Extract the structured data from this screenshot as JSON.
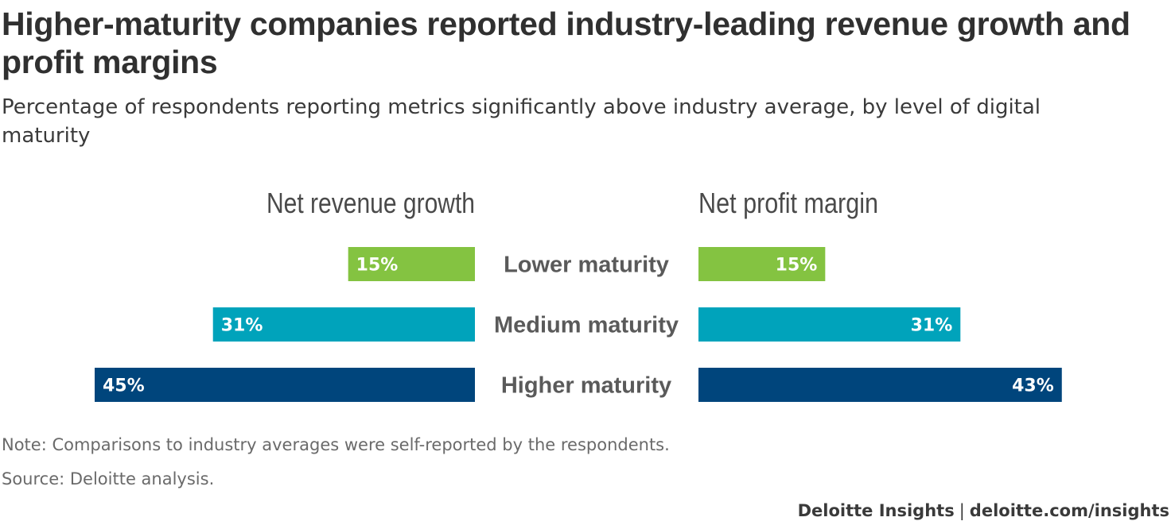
{
  "title": "Higher-maturity companies reported industry-leading revenue growth and profit margins",
  "subtitle": "Percentage of respondents reporting metrics significantly above industry average, by level of digital maturity",
  "note": "Note: Comparisons to industry averages were self-reported by the respondents.",
  "source": "Source: Deloitte analysis.",
  "footer": {
    "brand": "Deloitte Insights",
    "separator": "|",
    "url": "deloitte.com/insights"
  },
  "colors": {
    "lower": "#84c341",
    "medium": "#00a3bb",
    "higher": "#00457c",
    "label_text": "#5a5a5a",
    "bar_text": "#ffffff"
  },
  "chart_data": {
    "type": "bar",
    "orientation": "horizontal",
    "layout": "butterfly",
    "categories": [
      "Lower maturity",
      "Medium maturity",
      "Higher maturity"
    ],
    "series": [
      {
        "name": "Net revenue growth",
        "values": [
          15,
          31,
          45
        ],
        "direction": "left"
      },
      {
        "name": "Net profit margin",
        "values": [
          15,
          31,
          43
        ],
        "direction": "right"
      }
    ],
    "value_labels": {
      "Net revenue growth": [
        "15%",
        "31%",
        "45%"
      ],
      "Net profit margin": [
        "15%",
        "31%",
        "43%"
      ]
    },
    "unit": "%",
    "xlim": [
      0,
      45
    ],
    "grid": false,
    "legend": "none"
  }
}
